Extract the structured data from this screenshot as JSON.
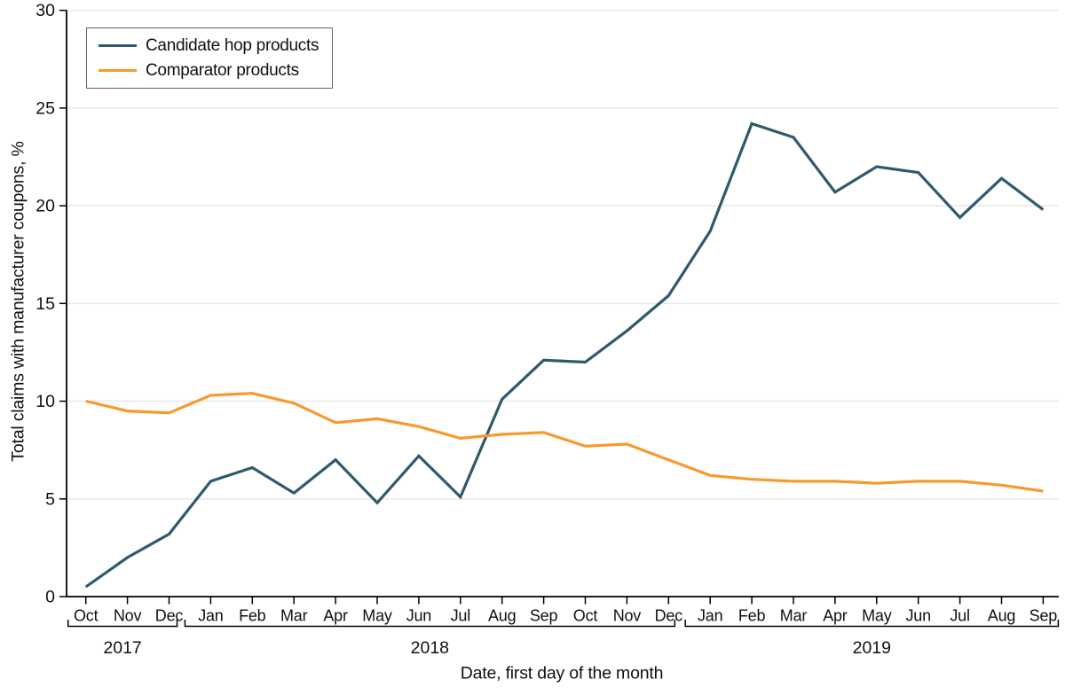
{
  "colors": {
    "candidate_line": "#2E5B6B",
    "comparator_line": "#F8992B",
    "gridline": "#E8E8E8",
    "axis": "#000000",
    "text": "#111111",
    "legend_border": "#646464"
  },
  "chart_data": {
    "type": "line",
    "title": "",
    "xlabel": "Date, first day of the month",
    "ylabel": "Total claims with manufacturer coupons, %",
    "ylim": [
      0,
      30
    ],
    "yticks": [
      0,
      5,
      10,
      15,
      20,
      25,
      30
    ],
    "grid": "horizontal",
    "legend_position": "top-left",
    "x": [
      "Oct",
      "Nov",
      "Dec",
      "Jan",
      "Feb",
      "Mar",
      "Apr",
      "May",
      "Jun",
      "Jul",
      "Aug",
      "Sep",
      "Oct",
      "Nov",
      "Dec",
      "Jan",
      "Feb",
      "Mar",
      "Apr",
      "May",
      "Jun",
      "Jul",
      "Aug",
      "Sep"
    ],
    "year_groups": [
      {
        "label": "2017",
        "start_index": 0,
        "end_index": 2
      },
      {
        "label": "2018",
        "start_index": 3,
        "end_index": 14
      },
      {
        "label": "2019",
        "start_index": 15,
        "end_index": 23
      }
    ],
    "series": [
      {
        "name": "Candidate hop products",
        "color": "#2E5B6B",
        "values": [
          0.5,
          2.0,
          3.2,
          5.9,
          6.6,
          5.3,
          7.0,
          4.8,
          7.2,
          5.1,
          10.1,
          12.1,
          12.0,
          13.6,
          15.4,
          18.7,
          24.2,
          23.5,
          20.7,
          22.0,
          21.7,
          19.4,
          21.4,
          19.8
        ]
      },
      {
        "name": "Comparator products",
        "color": "#F8992B",
        "values": [
          10.0,
          9.5,
          9.4,
          10.3,
          10.4,
          9.9,
          8.9,
          9.1,
          8.7,
          8.1,
          8.3,
          8.4,
          7.7,
          7.8,
          7.0,
          6.2,
          6.0,
          5.9,
          5.9,
          5.8,
          5.9,
          5.9,
          5.7,
          5.4
        ]
      }
    ]
  }
}
